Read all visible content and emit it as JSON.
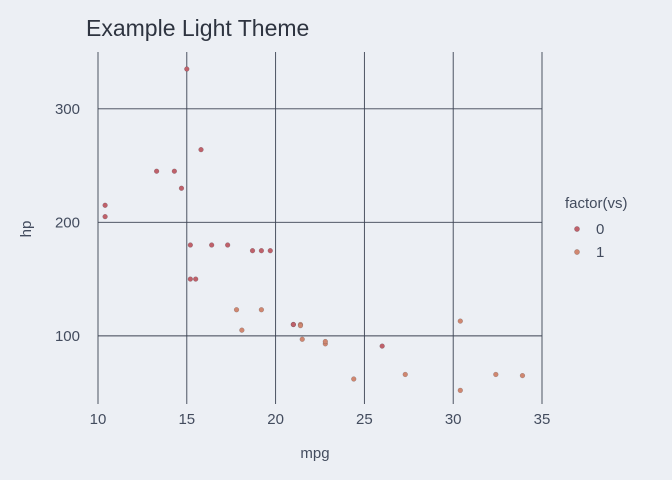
{
  "chart_data": {
    "type": "scatter",
    "title": "Example Light Theme",
    "xlabel": "mpg",
    "ylabel": "hp",
    "xlim": [
      10,
      35
    ],
    "ylim": [
      40,
      350
    ],
    "x_ticks": [
      10,
      15,
      20,
      25,
      30,
      35
    ],
    "y_ticks": [
      100,
      200,
      300
    ],
    "grid": true,
    "legend": {
      "title": "factor(vs)",
      "position": "right"
    },
    "series": [
      {
        "name": "0",
        "color": "#bf616a",
        "points": [
          [
            21.0,
            110
          ],
          [
            21.0,
            110
          ],
          [
            18.7,
            175
          ],
          [
            14.3,
            245
          ],
          [
            16.4,
            180
          ],
          [
            17.3,
            180
          ],
          [
            15.2,
            180
          ],
          [
            10.4,
            205
          ],
          [
            10.4,
            215
          ],
          [
            14.7,
            230
          ],
          [
            15.5,
            150
          ],
          [
            15.2,
            150
          ],
          [
            13.3,
            245
          ],
          [
            19.2,
            175
          ],
          [
            26.0,
            91
          ],
          [
            15.8,
            264
          ],
          [
            19.7,
            175
          ],
          [
            15.0,
            335
          ]
        ]
      },
      {
        "name": "1",
        "color": "#d08770",
        "points": [
          [
            22.8,
            93
          ],
          [
            21.4,
            110
          ],
          [
            18.1,
            105
          ],
          [
            24.4,
            62
          ],
          [
            22.8,
            95
          ],
          [
            19.2,
            123
          ],
          [
            17.8,
            123
          ],
          [
            32.4,
            66
          ],
          [
            30.4,
            52
          ],
          [
            33.9,
            65
          ],
          [
            21.5,
            97
          ],
          [
            27.3,
            66
          ],
          [
            30.4,
            113
          ],
          [
            21.4,
            109
          ]
        ]
      }
    ]
  }
}
